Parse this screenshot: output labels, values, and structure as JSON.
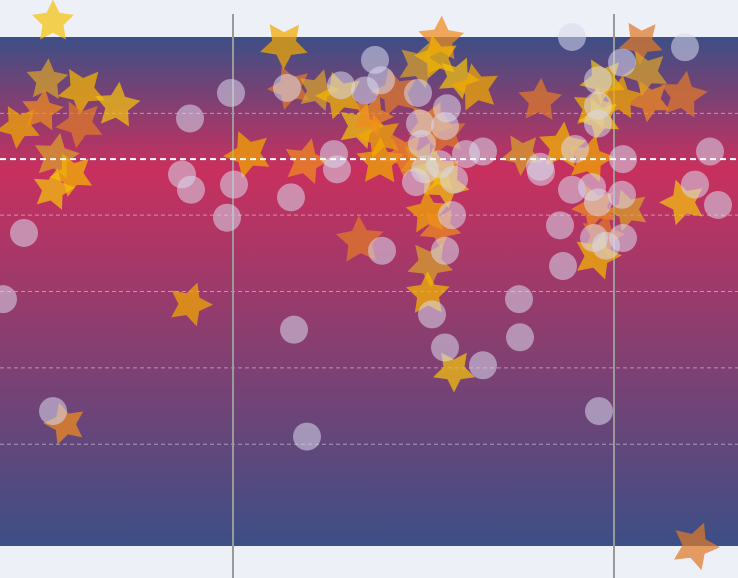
{
  "colors": {
    "background": "#eef0f7",
    "band_edge": "#3c4f86",
    "band_mid": "#c8305e",
    "grid": "#ffffff",
    "reference_line": "#ffffff",
    "frame_line": "#9a9a9a",
    "outside_grid": "#b8bccb"
  },
  "chart_data": {
    "type": "scatter",
    "title": "",
    "xlabel": "",
    "ylabel": "",
    "xlim": [
      0,
      738
    ],
    "ylim": [
      -10,
      10
    ],
    "grid": true,
    "band_ylim": [
      -10,
      10
    ],
    "reference_y": 5.2,
    "gridlines_y": [
      7,
      3,
      0,
      -3,
      -6
    ],
    "outside_gridlines_y": [
      12
    ],
    "vertical_lines_x": [
      233,
      614
    ],
    "series": [
      {
        "marker": "star",
        "colors": [
          "#f4c20d",
          "#f2a900",
          "#f08c1e",
          "#e07a2a",
          "#d9a22a",
          "#f5b700"
        ],
        "points": [
          [
            53,
            10.6
          ],
          [
            284,
            9.7
          ],
          [
            441,
            9.9
          ],
          [
            641,
            9.8
          ],
          [
            47,
            8.3
          ],
          [
            82,
            7.9
          ],
          [
            117,
            7.3
          ],
          [
            19,
            6.5
          ],
          [
            42,
            7.1
          ],
          [
            80,
            6.6
          ],
          [
            56,
            5.3
          ],
          [
            72,
            4.6
          ],
          [
            53,
            4.0
          ],
          [
            248,
            5.4
          ],
          [
            306,
            5.1
          ],
          [
            290,
            8.0
          ],
          [
            318,
            7.9
          ],
          [
            340,
            7.7
          ],
          [
            360,
            6.5
          ],
          [
            380,
            6.1
          ],
          [
            372,
            6.9
          ],
          [
            395,
            7.8
          ],
          [
            420,
            8.9
          ],
          [
            437,
            9.2
          ],
          [
            458,
            8.4
          ],
          [
            476,
            8.0
          ],
          [
            430,
            6.6
          ],
          [
            445,
            6.2
          ],
          [
            420,
            5.1
          ],
          [
            436,
            4.7
          ],
          [
            446,
            4.2
          ],
          [
            428,
            3.1
          ],
          [
            440,
            2.5
          ],
          [
            360,
            2.0
          ],
          [
            430,
            1.1
          ],
          [
            428,
            -0.1
          ],
          [
            454,
            -3.1
          ],
          [
            380,
            5.1
          ],
          [
            405,
            5.4
          ],
          [
            540,
            7.5
          ],
          [
            522,
            5.4
          ],
          [
            562,
            5.7
          ],
          [
            603,
            8.3
          ],
          [
            620,
            7.6
          ],
          [
            650,
            7.5
          ],
          [
            683,
            7.7
          ],
          [
            646,
            8.6
          ],
          [
            594,
            7.2
          ],
          [
            600,
            6.8
          ],
          [
            590,
            5.2
          ],
          [
            595,
            3.3
          ],
          [
            602,
            2.2
          ],
          [
            628,
            3.2
          ],
          [
            597,
            1.4
          ],
          [
            683,
            3.5
          ],
          [
            190,
            -0.5
          ],
          [
            65,
            -5.2
          ],
          [
            695,
            -10.0
          ]
        ]
      },
      {
        "marker": "circle",
        "color": "#d8d8ec",
        "points": [
          [
            231,
            7.8
          ],
          [
            190,
            6.8
          ],
          [
            182,
            4.6
          ],
          [
            191,
            4.0
          ],
          [
            234,
            4.2
          ],
          [
            227,
            2.9
          ],
          [
            24,
            2.3
          ],
          [
            3,
            -0.3
          ],
          [
            291,
            3.7
          ],
          [
            375,
            9.1
          ],
          [
            381,
            8.3
          ],
          [
            365,
            7.9
          ],
          [
            341,
            8.1
          ],
          [
            287,
            8.0
          ],
          [
            334,
            5.4
          ],
          [
            337,
            4.8
          ],
          [
            418,
            7.8
          ],
          [
            447,
            7.2
          ],
          [
            420,
            6.6
          ],
          [
            445,
            6.5
          ],
          [
            422,
            5.8
          ],
          [
            466,
            5.4
          ],
          [
            483,
            5.5
          ],
          [
            440,
            5.0
          ],
          [
            425,
            4.8
          ],
          [
            454,
            4.4
          ],
          [
            416,
            4.3
          ],
          [
            452,
            3.0
          ],
          [
            382,
            1.6
          ],
          [
            445,
            1.6
          ],
          [
            432,
            -0.9
          ],
          [
            519,
            -0.3
          ],
          [
            294,
            -1.5
          ],
          [
            520,
            -1.8
          ],
          [
            445,
            -2.2
          ],
          [
            483,
            -2.9
          ],
          [
            307,
            -5.7
          ],
          [
            53,
            -4.7
          ],
          [
            572,
            10.0
          ],
          [
            685,
            9.6
          ],
          [
            598,
            8.3
          ],
          [
            622,
            9.0
          ],
          [
            598,
            7.3
          ],
          [
            598,
            6.6
          ],
          [
            575,
            5.6
          ],
          [
            540,
            4.9
          ],
          [
            541,
            4.7
          ],
          [
            592,
            4.1
          ],
          [
            623,
            5.2
          ],
          [
            710,
            5.5
          ],
          [
            572,
            4.0
          ],
          [
            598,
            3.5
          ],
          [
            622,
            3.8
          ],
          [
            695,
            4.2
          ],
          [
            718,
            3.4
          ],
          [
            560,
            2.6
          ],
          [
            594,
            2.1
          ],
          [
            623,
            2.1
          ],
          [
            606,
            1.8
          ],
          [
            563,
            1.0
          ],
          [
            599,
            -4.7
          ]
        ]
      }
    ]
  }
}
